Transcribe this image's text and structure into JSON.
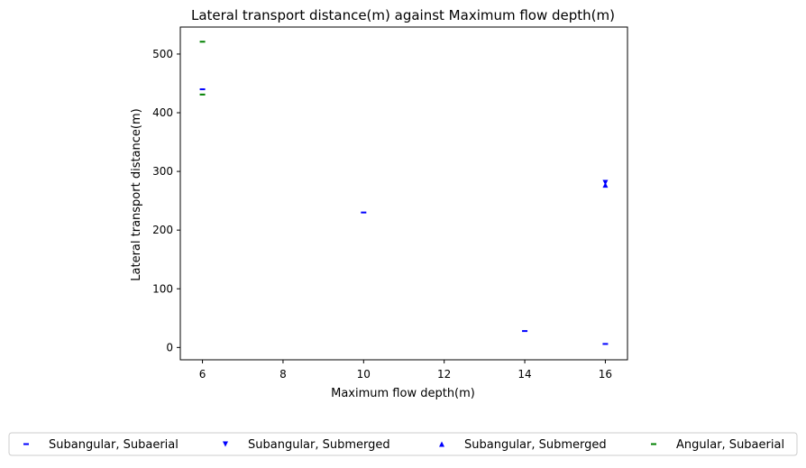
{
  "chart_data": {
    "type": "scatter",
    "title": "Lateral transport distance(m) against Maximum flow depth(m)",
    "xlabel": "Maximum flow depth(m)",
    "ylabel": "Lateral transport distance(m)",
    "xlim": [
      5.45,
      16.55
    ],
    "ylim": [
      -21,
      546
    ],
    "xticks": [
      6,
      8,
      10,
      12,
      14,
      16
    ],
    "yticks": [
      0,
      100,
      200,
      300,
      400,
      500
    ],
    "grid": false,
    "legend_position": "bottom",
    "series": [
      {
        "name": "Subangular, Subaerial",
        "marker": "hline",
        "color": "#0000ff",
        "points": [
          {
            "x": 6,
            "y": 440
          },
          {
            "x": 10,
            "y": 230
          },
          {
            "x": 14,
            "y": 28
          },
          {
            "x": 16,
            "y": 6
          }
        ]
      },
      {
        "name": "Subangular, Submerged",
        "marker": "triangle-down",
        "color": "#0000ff",
        "points": [
          {
            "x": 16,
            "y": 281
          }
        ]
      },
      {
        "name": "Subangular, Submerged",
        "marker": "triangle-up",
        "color": "#0000ff",
        "points": [
          {
            "x": 16,
            "y": 277
          }
        ]
      },
      {
        "name": "Angular, Subaerial",
        "marker": "hline",
        "color": "#008000",
        "points": [
          {
            "x": 6,
            "y": 521
          },
          {
            "x": 6,
            "y": 431
          }
        ]
      }
    ]
  }
}
